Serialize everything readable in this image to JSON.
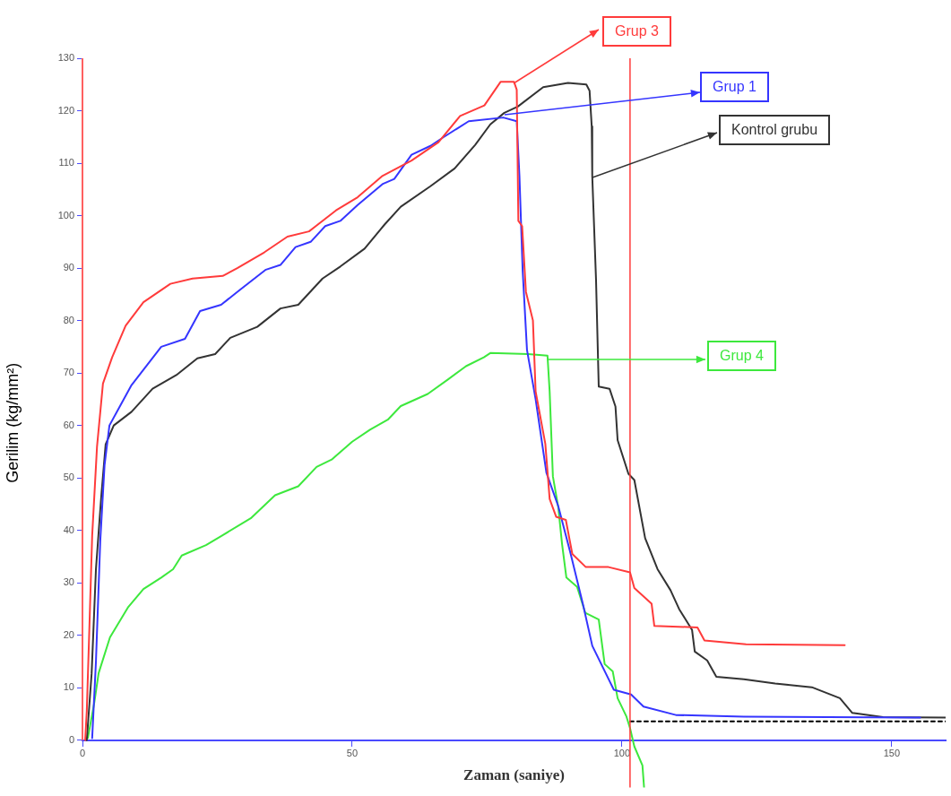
{
  "chart_data": {
    "type": "line",
    "xlabel": "Zaman (saniye)",
    "ylabel": "Gerilim (kg/mm²)",
    "xlim": [
      0,
      160
    ],
    "xticks": [
      0,
      50,
      100,
      150
    ],
    "ylim": [
      -9,
      130
    ],
    "yticks": [
      0,
      10,
      20,
      30,
      40,
      50,
      60,
      70,
      80,
      90,
      100,
      110,
      120,
      130
    ],
    "grid": false,
    "legend": "right",
    "marker": "none",
    "line_style": "solid",
    "series": [
      {
        "name": "Grup 3",
        "color": "#ff3b3b",
        "x": [
          0.5,
          0.8,
          1.3,
          1.8,
          2.7,
          3.8,
          5.5,
          8,
          11.3,
          16.3,
          20.4,
          26,
          28.7,
          33.7,
          38,
          42,
          47,
          51,
          55.5,
          61,
          66,
          70,
          74.5,
          77.5,
          80,
          80.5,
          80.8,
          81.5,
          82.2,
          83.5,
          84,
          85.8,
          86.6,
          87.8,
          89.6,
          90.8,
          93.3,
          97.5,
          101.5,
          102.3,
          105.5,
          106,
          114,
          115.3,
          123,
          141.3
        ],
        "values": [
          0,
          5.5,
          22,
          39,
          56,
          68,
          73,
          79,
          83.5,
          87,
          88,
          88.5,
          90,
          93,
          96,
          97,
          101,
          103.5,
          107.5,
          110.5,
          114,
          119,
          121,
          125.5,
          125.5,
          124,
          99,
          98,
          85.5,
          80,
          66.5,
          56.5,
          46,
          42.6,
          42,
          35.5,
          33,
          33,
          32,
          29,
          26,
          21.8,
          21.5,
          19,
          18.3,
          18.1
        ]
      },
      {
        "name": "Grup 1",
        "color": "#3535ff",
        "x": [
          1.8,
          2.5,
          3.3,
          4.1,
          5,
          6.6,
          9.1,
          14.6,
          19,
          21.8,
          25.7,
          29,
          34,
          36.7,
          39.5,
          42.3,
          45,
          47.8,
          51,
          55.6,
          57.8,
          61,
          64.5,
          67,
          71.6,
          78,
          80.5,
          81,
          81.6,
          82.4,
          84,
          86,
          88.2,
          90.5,
          92.8,
          94.5,
          98.5,
          101.7,
          104,
          110,
          122.6,
          155.3
        ],
        "values": [
          0.4,
          15,
          38,
          52.5,
          60,
          63,
          67.7,
          75,
          76.5,
          81.8,
          83,
          85.7,
          89.7,
          90.6,
          94,
          95,
          98,
          99,
          102,
          106,
          107,
          111.6,
          113.3,
          115,
          118,
          118.7,
          118,
          107.6,
          89.5,
          74.4,
          65,
          51,
          44.6,
          35.5,
          25.8,
          18,
          9.6,
          8.7,
          6.4,
          4.8,
          4.5,
          4.3
        ]
      },
      {
        "name": "Kontrol grubu",
        "color": "#333333",
        "x": [
          0.8,
          1.7,
          2.5,
          3.5,
          4.3,
          5.8,
          9.1,
          13,
          17.4,
          21.3,
          24.6,
          27.4,
          32.4,
          36.7,
          40,
          44.5,
          47.8,
          52.3,
          56,
          59,
          64.5,
          69,
          72.8,
          75.6,
          78.2,
          80.7,
          85.4,
          90,
          93.4,
          94,
          94.4,
          94.5,
          95.2,
          95.7,
          97.7,
          98.8,
          99.2,
          101.2,
          102.3,
          104.3,
          106.6,
          109,
          110.6,
          113,
          113.5,
          115.8,
          117.5,
          122.6,
          128.4,
          135.2,
          140.4,
          142.7,
          148.4,
          160
        ],
        "values": [
          0,
          12.7,
          32.6,
          46.7,
          56.4,
          60,
          62.6,
          67,
          69.6,
          72.8,
          73.6,
          76.7,
          78.8,
          82.3,
          83,
          88,
          90.3,
          93.7,
          98.3,
          101.7,
          105.6,
          109,
          113.5,
          117.4,
          119.6,
          120.8,
          124.5,
          125.3,
          125,
          123.8,
          117,
          107.5,
          87.7,
          67.4,
          67,
          63.6,
          57.2,
          50.8,
          49.6,
          38.5,
          32.6,
          28.6,
          25,
          21,
          16.9,
          15.2,
          12.1,
          11.6,
          10.8,
          10.1,
          8,
          5.2,
          4.4,
          4.3
        ]
      },
      {
        "name": "Grup 4",
        "color": "#3de83d",
        "x": [
          1,
          2.2,
          3,
          5.1,
          8.5,
          11.3,
          14.6,
          16.8,
          18.4,
          22.9,
          25.7,
          31.2,
          35.7,
          40,
          43.4,
          46.2,
          50,
          53.3,
          56.6,
          59,
          64,
          67.8,
          71.1,
          74.4,
          75.6,
          82.6,
          86.2,
          86.6,
          87.2,
          88.2,
          88.9,
          89.7,
          91.7,
          93.2,
          95.7,
          96.8,
          98.3,
          99.2,
          100.8,
          101.5,
          102.3,
          103.8,
          104.1
        ],
        "values": [
          0.4,
          7.2,
          12.8,
          19.6,
          25.4,
          28.8,
          31,
          32.6,
          35.2,
          37.2,
          38.9,
          42.3,
          46.7,
          48.4,
          52.1,
          53.5,
          56.9,
          59.2,
          61.1,
          63.7,
          66,
          68.8,
          71.3,
          73,
          73.8,
          73.6,
          73.3,
          66.5,
          50.3,
          44.4,
          37.4,
          31,
          29.2,
          24.3,
          23,
          14.5,
          13.1,
          8,
          4.6,
          2.3,
          -1.2,
          -4.8,
          -9
        ]
      },
      {
        "color": "#000000",
        "line_style": "dashed",
        "x": [
          101.5,
          160
        ],
        "values": [
          3.6,
          3.6
        ]
      }
    ],
    "ref_lines": [
      {
        "axis": "x",
        "value": 101.5,
        "color": "#ff3b3b"
      }
    ]
  }
}
